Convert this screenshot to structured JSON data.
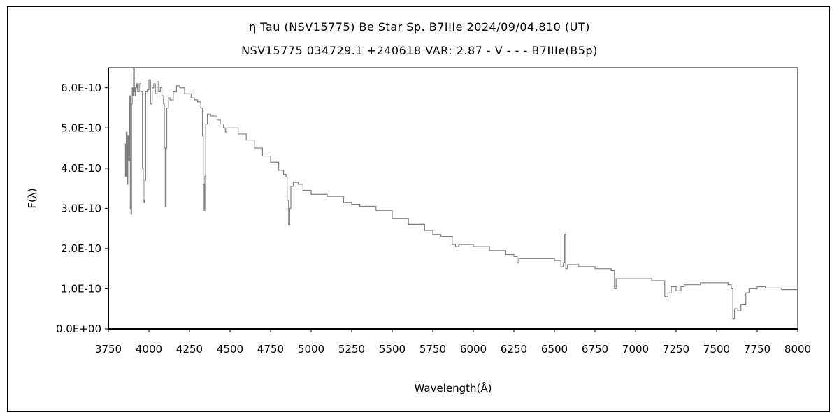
{
  "chart_data": {
    "type": "line",
    "title": "η  Tau (NSV15775)    Be Star    Sp. B7IIIe    2024/09/04.810 (UT)",
    "subtitle": "NSV15775 034729.1 +240618 VAR: 2.87 - V - - - B7IIIe(B5p)",
    "xlabel": "Wavelength(Å)",
    "ylabel": "F(λ)",
    "xlim": [
      3750,
      8000
    ],
    "ylim": [
      0,
      6.5e-10
    ],
    "grid": false,
    "x_ticks": [
      "3750",
      "4000",
      "4250",
      "4500",
      "4750",
      "5000",
      "5250",
      "5500",
      "5750",
      "6000",
      "6250",
      "6500",
      "6750",
      "7000",
      "7250",
      "7500",
      "7750",
      "8000"
    ],
    "y_ticks": [
      "0.0E+00",
      "1.0E-10",
      "2.0E-10",
      "3.0E-10",
      "4.0E-10",
      "5.0E-10",
      "6.0E-10"
    ],
    "line_color": "#808080",
    "series": [
      {
        "x": [
          3850,
          3855,
          3860,
          3865,
          3870,
          3875,
          3880,
          3885,
          3889,
          3893,
          3897,
          3900,
          3905,
          3910,
          3912,
          3915,
          3920,
          3925,
          3930,
          3940,
          3950,
          3960,
          3965,
          3970,
          3975,
          3980,
          3990,
          4000,
          4010,
          4020,
          4030,
          4040,
          4050,
          4060,
          4070,
          4080,
          4090,
          4095,
          4101,
          4106,
          4110,
          4120,
          4130,
          4150,
          4170,
          4190,
          4200,
          4220,
          4240,
          4260,
          4280,
          4300,
          4320,
          4330,
          4335,
          4340,
          4345,
          4350,
          4360,
          4380,
          4400,
          4420,
          4440,
          4460,
          4471,
          4480,
          4500,
          4550,
          4600,
          4650,
          4700,
          4750,
          4800,
          4830,
          4845,
          4852,
          4861,
          4868,
          4875,
          4890,
          4920,
          4950,
          5000,
          5100,
          5200,
          5250,
          5300,
          5400,
          5500,
          5600,
          5700,
          5750,
          5800,
          5850,
          5870,
          5890,
          5910,
          6000,
          6100,
          6200,
          6250,
          6270,
          6280,
          6300,
          6400,
          6500,
          6540,
          6555,
          6563,
          6570,
          6580,
          6650,
          6750,
          6850,
          6865,
          6870,
          6880,
          6900,
          7000,
          7100,
          7160,
          7180,
          7200,
          7220,
          7250,
          7280,
          7300,
          7400,
          7500,
          7570,
          7590,
          7600,
          7610,
          7630,
          7650,
          7680,
          7700,
          7750,
          7800,
          7900,
          8000
        ],
        "y": [
          4.6,
          3.8,
          4.9,
          3.6,
          4.8,
          4.2,
          5.8,
          3.0,
          2.85,
          5.6,
          6.0,
          5.8,
          6.5,
          5.9,
          6.0,
          5.8,
          6.0,
          6.1,
          5.9,
          6.1,
          5.9,
          4.0,
          3.2,
          3.15,
          3.7,
          5.9,
          5.95,
          6.2,
          5.6,
          6.0,
          6.1,
          5.85,
          6.15,
          5.9,
          6.0,
          5.8,
          5.6,
          4.5,
          3.05,
          4.5,
          5.5,
          5.75,
          5.7,
          5.9,
          6.05,
          6.0,
          6.0,
          5.85,
          5.85,
          5.75,
          5.7,
          5.65,
          5.5,
          4.8,
          3.6,
          2.95,
          3.8,
          5.1,
          5.35,
          5.3,
          5.3,
          5.2,
          5.1,
          5.0,
          4.9,
          5.0,
          5.0,
          4.85,
          4.7,
          4.5,
          4.3,
          4.15,
          3.95,
          3.85,
          3.8,
          3.2,
          2.6,
          3.0,
          3.55,
          3.65,
          3.6,
          3.45,
          3.35,
          3.3,
          3.15,
          3.1,
          3.05,
          2.95,
          2.75,
          2.6,
          2.45,
          2.35,
          2.3,
          2.3,
          2.1,
          2.05,
          2.1,
          2.05,
          1.95,
          1.85,
          1.8,
          1.65,
          1.75,
          1.75,
          1.75,
          1.7,
          1.55,
          1.65,
          2.35,
          1.5,
          1.6,
          1.55,
          1.5,
          1.45,
          1.45,
          1.0,
          1.25,
          1.25,
          1.25,
          1.2,
          1.2,
          0.8,
          0.9,
          1.05,
          0.95,
          1.05,
          1.1,
          1.15,
          1.15,
          1.1,
          1.0,
          0.25,
          0.5,
          0.45,
          0.6,
          0.9,
          1.0,
          1.05,
          1.02,
          0.98,
          0.95
        ]
      }
    ]
  }
}
